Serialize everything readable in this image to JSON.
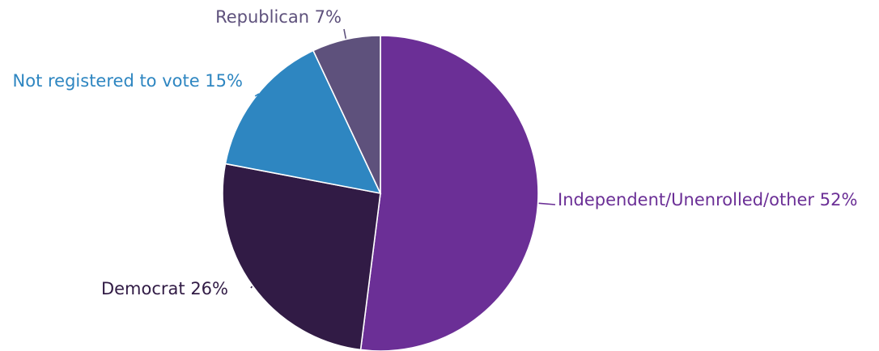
{
  "chart_data": {
    "type": "pie",
    "title": "",
    "start_angle_deg": 0,
    "direction": "clockwise",
    "slices": [
      {
        "label": "Independent/Unenrolled/other 52%",
        "category": "Independent/Unenrolled/other",
        "value": 52,
        "color": "#6b2f96"
      },
      {
        "label": "Democrat 26%",
        "category": "Democrat",
        "value": 26,
        "color": "#311b45"
      },
      {
        "label": "Not registered to vote 15%",
        "category": "Not registered to vote",
        "value": 15,
        "color": "#2e86c1"
      },
      {
        "label": "Republican 7%",
        "category": "Republican",
        "value": 7,
        "color": "#5e517c"
      }
    ]
  }
}
